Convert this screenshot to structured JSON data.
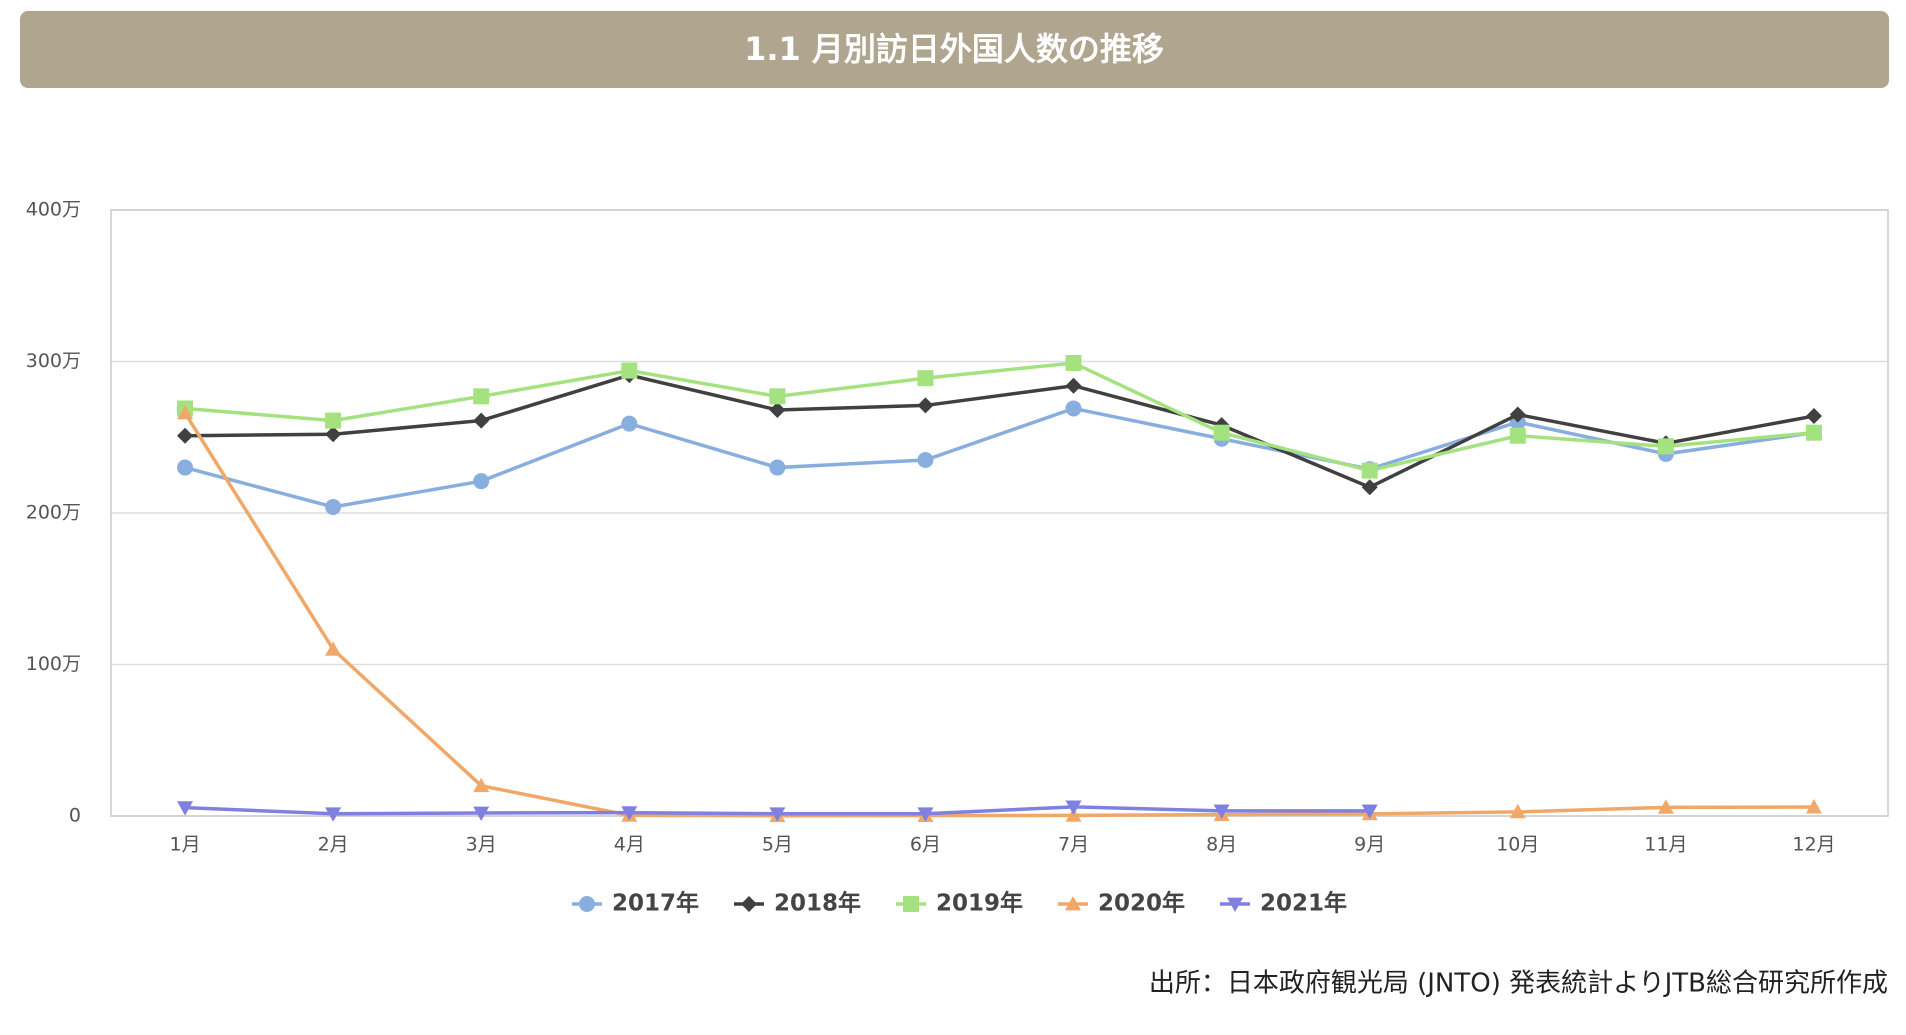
{
  "chart_data": {
    "type": "line",
    "title": "1.1 月別訪日外国人数の推移",
    "source": "出所：日本政府観光局 (JNTO) 発表統計よりJTB総合研究所作成",
    "categories": [
      "1月",
      "2月",
      "3月",
      "4月",
      "5月",
      "6月",
      "7月",
      "8月",
      "9月",
      "10月",
      "11月",
      "12月"
    ],
    "series": [
      {
        "name": "2017年",
        "color": "#88aee0",
        "marker": "circle",
        "values": [
          230,
          204,
          221,
          259,
          230,
          235,
          269,
          249,
          229,
          260,
          239,
          253
        ]
      },
      {
        "name": "2018年",
        "color": "#404040",
        "marker": "diamond",
        "values": [
          251,
          252,
          261,
          291,
          268,
          271,
          284,
          258,
          217,
          265,
          246,
          264
        ]
      },
      {
        "name": "2019年",
        "color": "#a3e27f",
        "marker": "square",
        "values": [
          269,
          261,
          277,
          294,
          277,
          289,
          299,
          253,
          228,
          251,
          244,
          253
        ]
      },
      {
        "name": "2020年",
        "color": "#f0a868",
        "marker": "triangle-up",
        "values": [
          266,
          110,
          20,
          0.4,
          0.2,
          0.3,
          0.4,
          0.9,
          1.4,
          2.7,
          5.7,
          5.9
        ]
      },
      {
        "name": "2021年",
        "color": "#8080e0",
        "marker": "triangle-down",
        "values": [
          5.5,
          1.5,
          2,
          2.2,
          1.5,
          1.5,
          6,
          3.4,
          3.4,
          null,
          null,
          null
        ]
      }
    ],
    "ylim": [
      0,
      400
    ],
    "yticks": [
      0,
      {
        "value": 100,
        "label": "100万"
      },
      {
        "value": 200,
        "label": "200万"
      },
      {
        "value": 300,
        "label": "300万"
      },
      {
        "value": 400,
        "label": "400万"
      }
    ],
    "grid": true,
    "legend": "bottom"
  }
}
